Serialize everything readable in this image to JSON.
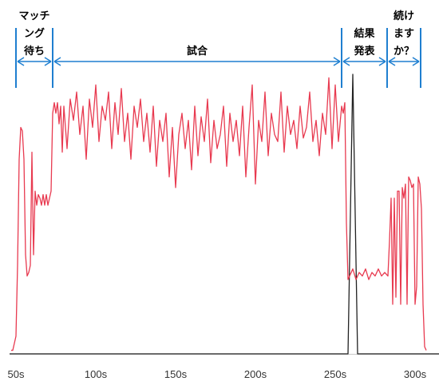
{
  "chart_data": {
    "type": "line",
    "xlim": [
      46,
      315
    ],
    "ylim": [
      0,
      100
    ],
    "xticks": [
      {
        "value": 50,
        "label": "50s"
      },
      {
        "value": 100,
        "label": "100s"
      },
      {
        "value": 150,
        "label": "150s"
      },
      {
        "value": 200,
        "label": "200s"
      },
      {
        "value": 250,
        "label": "250s"
      },
      {
        "value": 300,
        "label": "300s"
      }
    ],
    "phase_color": "#1f7fd0",
    "phases": [
      {
        "label": [
          "マッチ",
          "ング",
          "待ち"
        ],
        "start": 50,
        "end": 73
      },
      {
        "label": [
          "試合"
        ],
        "start": 73,
        "end": 254
      },
      {
        "label": [
          "結果",
          "発表"
        ],
        "start": 254,
        "end": 282.5
      },
      {
        "label": [
          "続け",
          "ます",
          "か？"
        ],
        "start": 282.5,
        "end": 303.5
      }
    ],
    "series": [
      {
        "color": "#222222",
        "x": [
          46,
          258,
          261,
          264,
          315
        ],
        "values": [
          0,
          0,
          79,
          0,
          0
        ]
      },
      {
        "color": "#e83a50",
        "x": [
          47,
          48,
          49,
          50,
          51,
          52,
          53,
          54,
          55,
          56,
          57,
          58,
          59,
          60,
          61,
          62,
          63,
          64,
          65,
          66,
          67,
          68,
          69,
          70,
          71,
          72,
          73,
          74,
          75,
          76,
          77,
          78,
          79,
          80,
          82,
          84,
          86,
          88,
          90,
          92,
          94,
          96,
          98,
          100,
          102,
          104,
          106,
          108,
          110,
          112,
          114,
          116,
          118,
          120,
          122,
          124,
          126,
          128,
          130,
          132,
          134,
          136,
          138,
          140,
          142,
          144,
          146,
          148,
          150,
          152,
          154,
          156,
          158,
          160,
          162,
          164,
          166,
          168,
          170,
          172,
          174,
          176,
          178,
          180,
          182,
          184,
          186,
          188,
          190,
          192,
          194,
          196,
          198,
          200,
          202,
          204,
          206,
          208,
          210,
          212,
          214,
          216,
          218,
          220,
          222,
          224,
          226,
          228,
          230,
          232,
          234,
          236,
          238,
          240,
          242,
          244,
          246,
          248,
          250,
          252,
          254,
          255,
          256,
          257,
          258,
          259,
          261,
          263,
          265,
          267,
          269,
          271,
          273,
          275,
          277,
          279,
          281,
          283,
          284,
          285,
          286,
          287,
          288,
          289,
          290,
          291,
          292,
          293,
          294,
          295,
          296,
          297,
          298,
          299,
          300,
          301,
          302,
          303,
          304,
          305,
          306,
          307
        ],
        "values": [
          1,
          1,
          3,
          5,
          25,
          55,
          64,
          63,
          55,
          28,
          22,
          23,
          25,
          57,
          28,
          46,
          42,
          45,
          44,
          42,
          45,
          42,
          45,
          42,
          44,
          46,
          68,
          71,
          68,
          71,
          65,
          70,
          57,
          70,
          58,
          72,
          66,
          74,
          62,
          70,
          55,
          72,
          64,
          76,
          60,
          70,
          66,
          74,
          58,
          71,
          62,
          75,
          60,
          68,
          55,
          70,
          64,
          72,
          60,
          68,
          57,
          70,
          53,
          66,
          60,
          68,
          50,
          64,
          47,
          62,
          68,
          58,
          66,
          52,
          70,
          56,
          67,
          60,
          72,
          54,
          66,
          58,
          62,
          70,
          53,
          68,
          60,
          66,
          56,
          70,
          50,
          64,
          76,
          48,
          66,
          60,
          74,
          56,
          68,
          62,
          60,
          74,
          57,
          70,
          62,
          66,
          58,
          70,
          61,
          64,
          74,
          60,
          66,
          56,
          68,
          62,
          78,
          58,
          76,
          60,
          70,
          68,
          71,
          37,
          21,
          22,
          24,
          21,
          23,
          22,
          24,
          21,
          23,
          22,
          24,
          22,
          23,
          22,
          32,
          44,
          14,
          44,
          16,
          46,
          46,
          14,
          47,
          44,
          48,
          14,
          50,
          49,
          47,
          48,
          14,
          19,
          50,
          48,
          41,
          14,
          2,
          1
        ]
      }
    ]
  }
}
